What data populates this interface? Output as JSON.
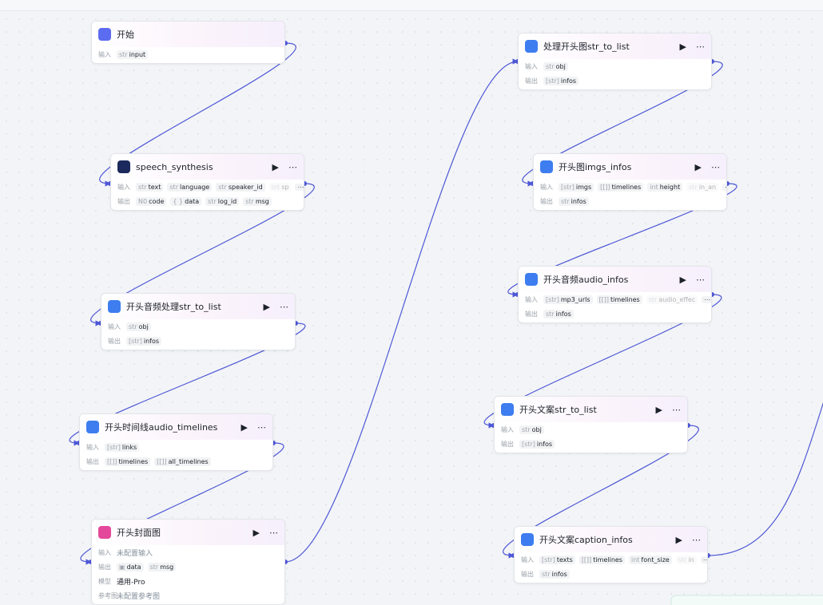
{
  "nodes": [
    {
      "title": "开始",
      "rows": [
        {
          "label": "输入",
          "params": [
            {
              "type": "str",
              "name": "input"
            }
          ]
        }
      ]
    },
    {
      "title": "speech_synthesis",
      "rows": [
        {
          "label": "输入",
          "params": [
            {
              "type": "str",
              "name": "text"
            },
            {
              "type": "str",
              "name": "language"
            },
            {
              "type": "str",
              "name": "speaker_id"
            },
            {
              "type": "int",
              "name": "sp"
            }
          ]
        },
        {
          "label": "输出",
          "params": [
            {
              "type": "N0",
              "name": "code"
            },
            {
              "type": "{ }",
              "name": "data"
            },
            {
              "type": "str",
              "name": "log_id"
            },
            {
              "type": "str",
              "name": "msg"
            }
          ]
        }
      ]
    },
    {
      "title": "开头音频处理str_to_list",
      "rows": [
        {
          "label": "输入",
          "params": [
            {
              "type": "str",
              "name": "obj"
            }
          ]
        },
        {
          "label": "输出",
          "params": [
            {
              "type": "[str]",
              "name": "infos"
            }
          ]
        }
      ]
    },
    {
      "title": "开头时间线audio_timelines",
      "rows": [
        {
          "label": "输入",
          "params": [
            {
              "type": "[str]",
              "name": "links"
            }
          ]
        },
        {
          "label": "输出",
          "params": [
            {
              "type": "[[]]",
              "name": "timelines"
            },
            {
              "type": "[[]]",
              "name": "all_timelines"
            }
          ]
        }
      ]
    },
    {
      "title": "开头封面图",
      "rows": [
        {
          "label": "输入",
          "text": "未配置输入"
        },
        {
          "label": "输出",
          "params": [
            {
              "type": "▣",
              "name": "data"
            },
            {
              "type": "str",
              "name": "msg"
            }
          ]
        },
        {
          "label": "模型",
          "text": "通用-Pro"
        },
        {
          "label": "参考图",
          "text": "未配置参考图"
        }
      ]
    },
    {
      "title": "处理开头图str_to_list",
      "rows": [
        {
          "label": "输入",
          "params": [
            {
              "type": "str",
              "name": "obj"
            }
          ]
        },
        {
          "label": "输出",
          "params": [
            {
              "type": "[str]",
              "name": "infos"
            }
          ]
        }
      ]
    },
    {
      "title": "开头图imgs_infos",
      "rows": [
        {
          "label": "输入",
          "params": [
            {
              "type": "[str]",
              "name": "imgs"
            },
            {
              "type": "[[]]",
              "name": "timelines"
            },
            {
              "type": "int",
              "name": "height"
            },
            {
              "type": "str",
              "name": "in_an"
            }
          ]
        },
        {
          "label": "输出",
          "params": [
            {
              "type": "str",
              "name": "infos"
            }
          ]
        }
      ]
    },
    {
      "title": "开头音频audio_infos",
      "rows": [
        {
          "label": "输入",
          "params": [
            {
              "type": "[str]",
              "name": "mp3_urls"
            },
            {
              "type": "[[]]",
              "name": "timelines"
            },
            {
              "type": "str",
              "name": "audio_effec"
            }
          ]
        },
        {
          "label": "输出",
          "params": [
            {
              "type": "str",
              "name": "infos"
            }
          ]
        }
      ]
    },
    {
      "title": "开头文案str_to_list",
      "rows": [
        {
          "label": "输入",
          "params": [
            {
              "type": "str",
              "name": "obj"
            }
          ]
        },
        {
          "label": "输出",
          "params": [
            {
              "type": "[str]",
              "name": "infos"
            }
          ]
        }
      ]
    },
    {
      "title": "开头文案caption_infos",
      "rows": [
        {
          "label": "输入",
          "params": [
            {
              "type": "[str]",
              "name": "texts"
            },
            {
              "type": "[[]]",
              "name": "timelines"
            },
            {
              "type": "int",
              "name": "font_size"
            },
            {
              "type": "str",
              "name": "in"
            }
          ]
        },
        {
          "label": "输出",
          "params": [
            {
              "type": "str",
              "name": "infos"
            }
          ]
        }
      ]
    }
  ]
}
